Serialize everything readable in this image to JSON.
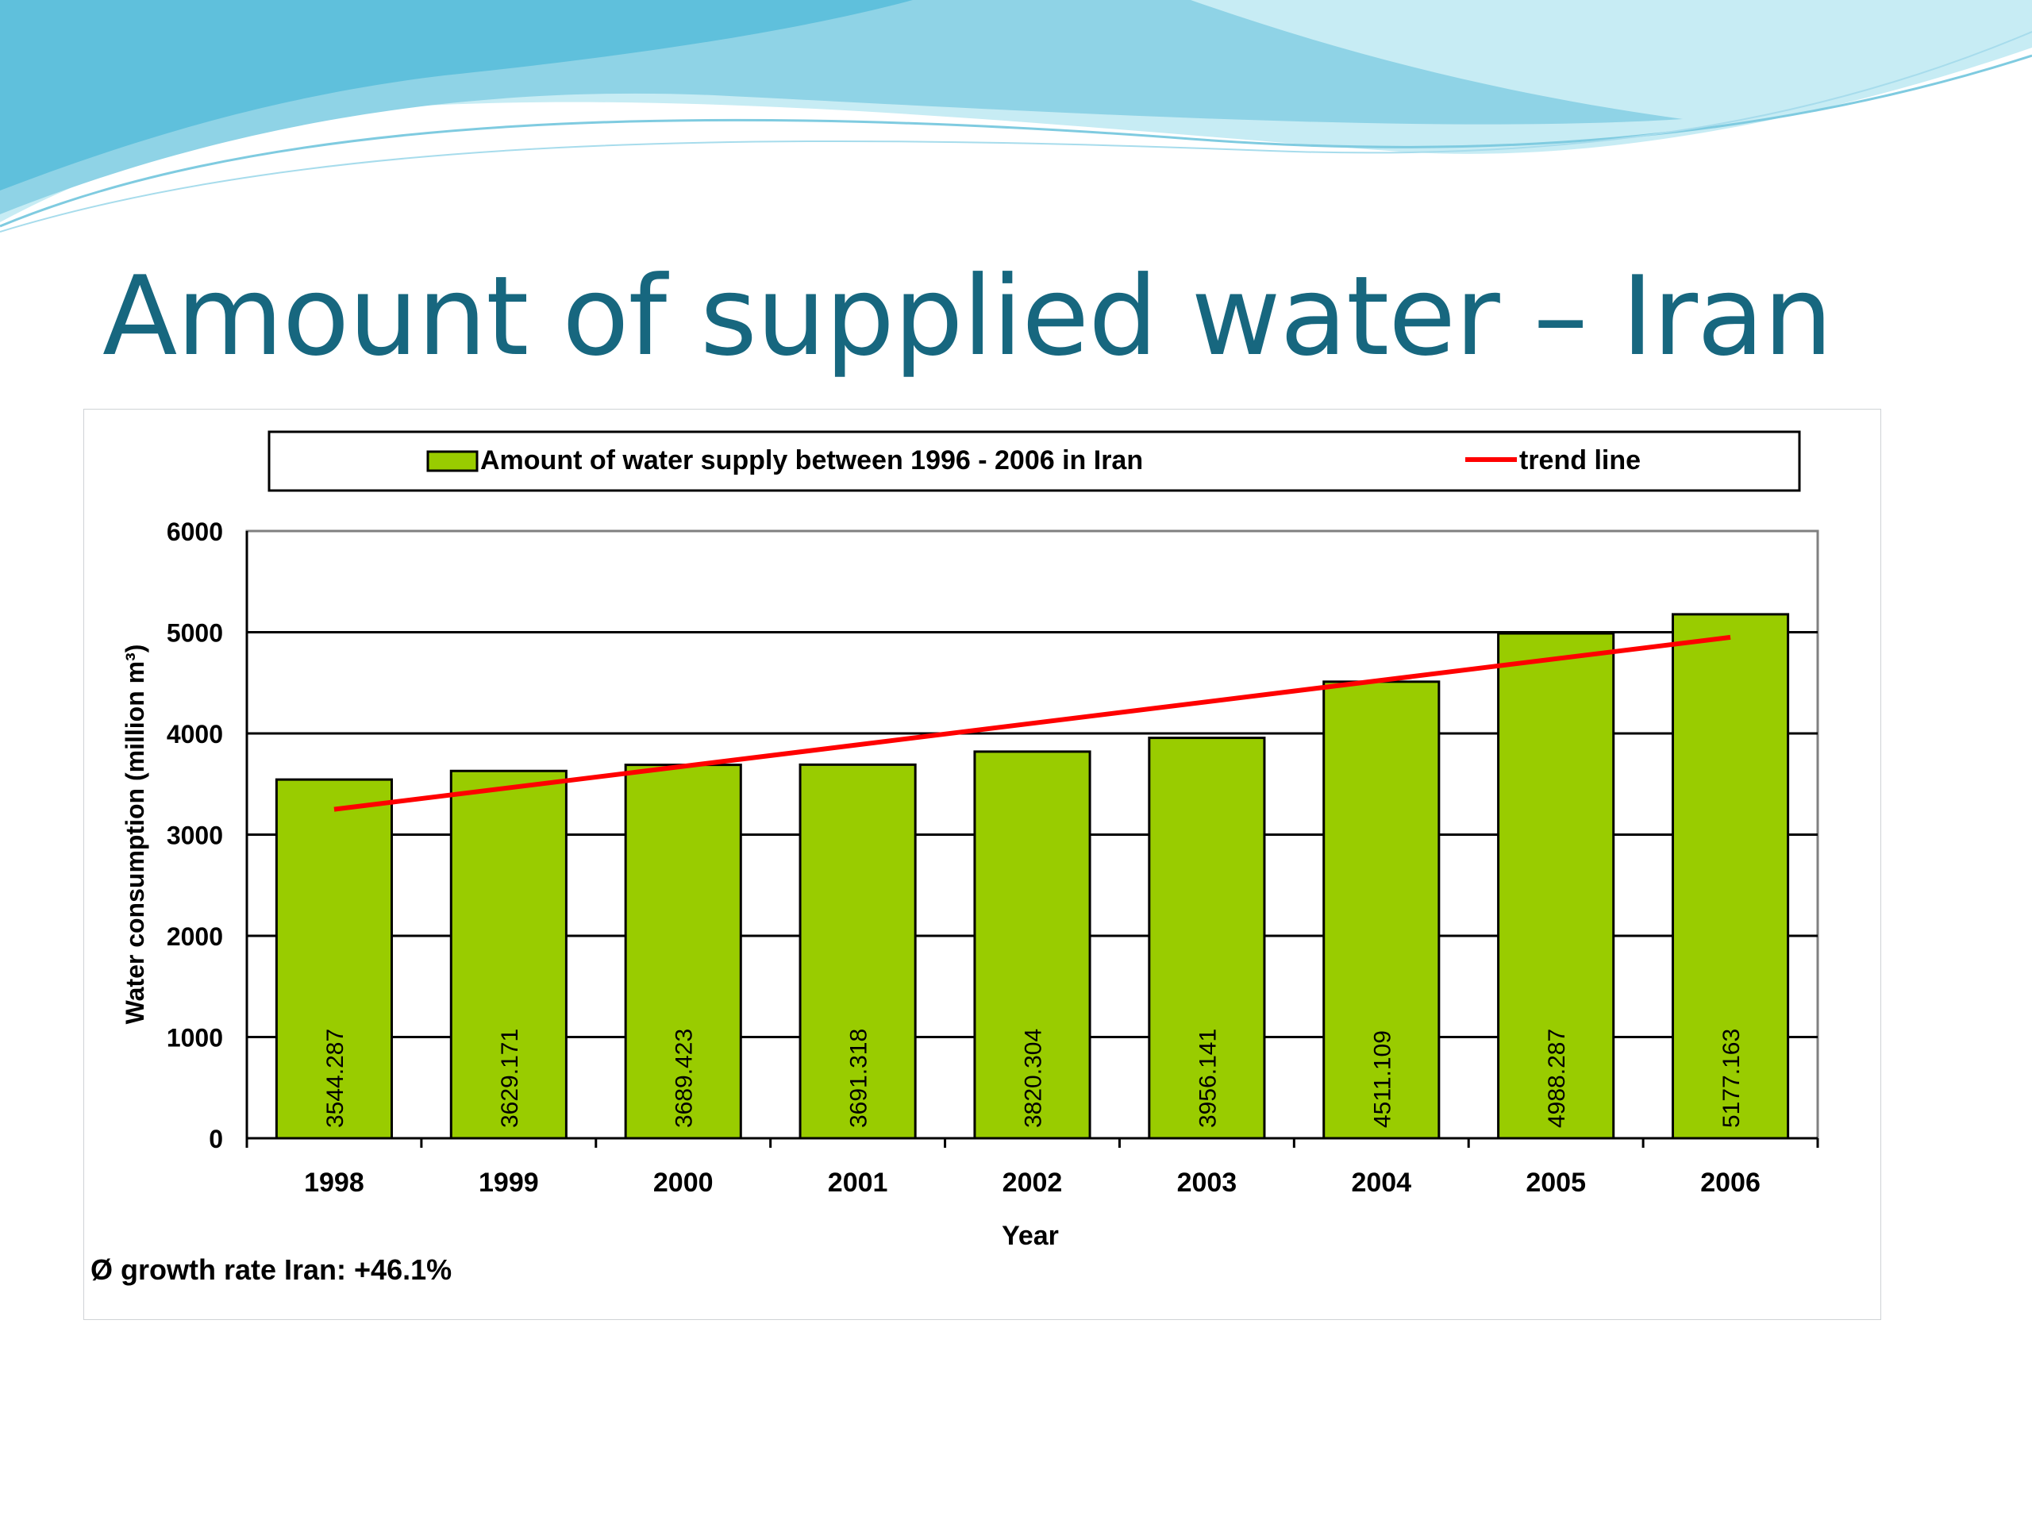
{
  "slide": {
    "title": "Amount of supplied water – Iran"
  },
  "colors": {
    "title": "#17677f",
    "bar": "#99cc00",
    "trend": "#ff0000",
    "wave_dark": "#6cc4dc",
    "wave_light": "#a9dcea"
  },
  "chart_data": {
    "type": "bar",
    "categories": [
      "1998",
      "1999",
      "2000",
      "2001",
      "2002",
      "2003",
      "2004",
      "2005",
      "2006"
    ],
    "series": [
      {
        "name": "Amount of water supply between 1996 - 2006 in Iran",
        "values": [
          3544.287,
          3629.171,
          3689.423,
          3691.318,
          3820.304,
          3956.141,
          4511.109,
          4988.287,
          5177.163
        ],
        "labels": [
          "3544.287",
          "3629.171",
          "3689.423",
          "3691.318",
          "3820.304",
          "3956.141",
          "4511.109",
          "4988.287",
          "5177.163"
        ]
      }
    ],
    "trend": {
      "name": "trend line",
      "start": 3250,
      "end": 4950
    },
    "xlabel": "Year",
    "ylabel": "Water consumption (million m³)",
    "ylim": [
      0,
      6000
    ],
    "yticks": [
      "0",
      "1000",
      "2000",
      "3000",
      "4000",
      "5000",
      "6000"
    ],
    "grid": "horizontal",
    "legend_placement": "top",
    "footnote": "Ø growth rate Iran: +46.1%"
  }
}
